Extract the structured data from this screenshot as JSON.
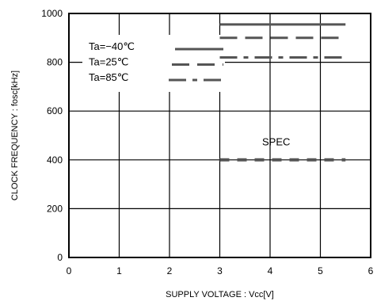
{
  "chart_data": {
    "type": "line",
    "xlabel": "SUPPLY VOLTAGE : Vcc[V]",
    "ylabel": "CLOCK FREQUENCY : fosc[kHz]",
    "xlim": [
      0,
      6
    ],
    "ylim": [
      0,
      1000
    ],
    "x_ticks": [
      "0",
      "1",
      "2",
      "3",
      "4",
      "5",
      "6"
    ],
    "y_ticks": [
      "0",
      "200",
      "400",
      "600",
      "800",
      "1000"
    ],
    "grid": true,
    "legend_placement": "upper-left",
    "series": [
      {
        "name": "Ta=−40℃",
        "style": "solid",
        "color": "#555555",
        "x": [
          3.0,
          5.5
        ],
        "y": [
          955,
          955
        ]
      },
      {
        "name": "Ta=25℃",
        "style": "dashed",
        "color": "#555555",
        "x": [
          3.0,
          5.5
        ],
        "y": [
          900,
          900
        ]
      },
      {
        "name": "Ta=85℃",
        "style": "dashdot",
        "color": "#555555",
        "x": [
          3.0,
          5.5
        ],
        "y": [
          820,
          820
        ]
      },
      {
        "name": "SPEC",
        "style": "dashed",
        "color": "#555555",
        "x": [
          3.0,
          5.5
        ],
        "y": [
          400,
          400
        ]
      }
    ],
    "annotations": [
      {
        "text": "SPEC",
        "x": 4.0,
        "y": 475
      }
    ]
  }
}
